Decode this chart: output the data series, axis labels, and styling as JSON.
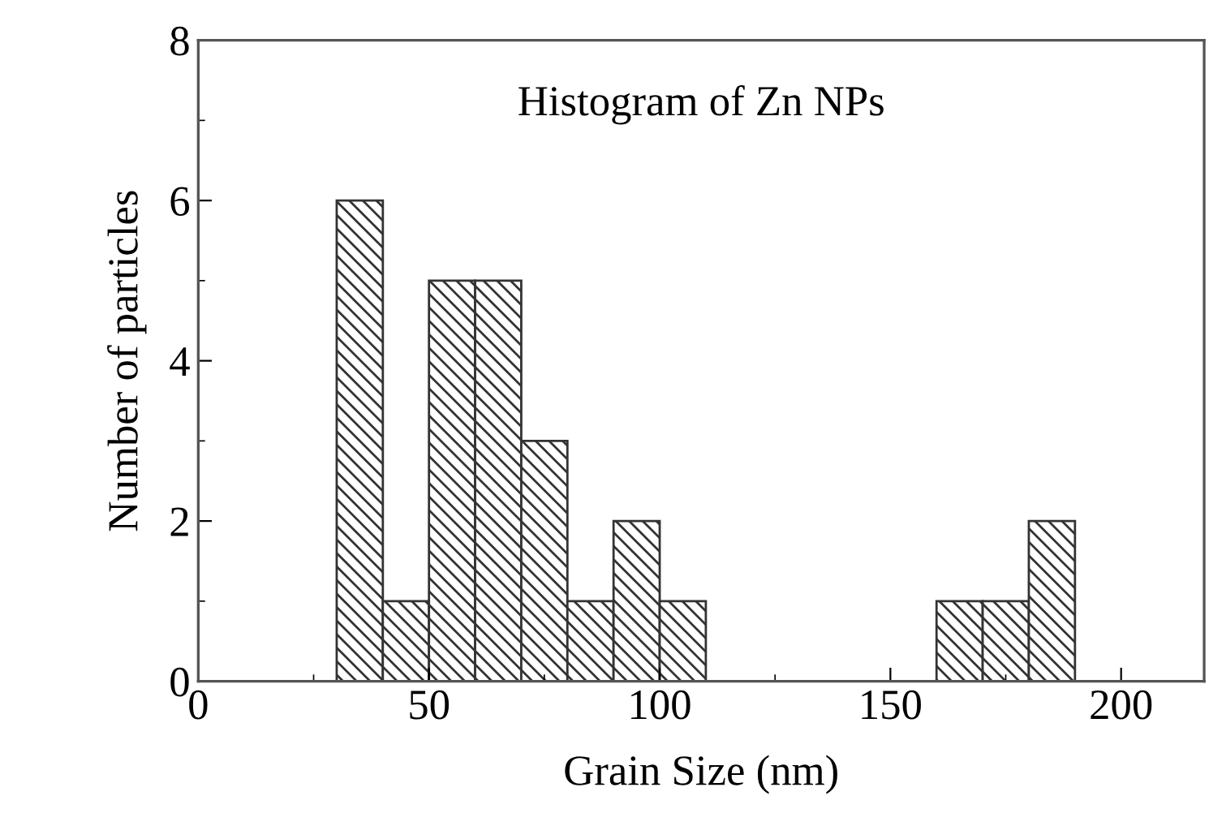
{
  "chart_data": {
    "type": "histogram",
    "xlabel": "Grain Size (nm)",
    "ylabel": "Number of particles",
    "annotations": [
      "Histogram of Zn NPs"
    ],
    "bins": [
      30,
      40,
      50,
      60,
      70,
      80,
      90,
      100,
      110,
      160,
      170,
      180,
      190
    ],
    "values": [
      6,
      1,
      5,
      5,
      3,
      1,
      2,
      1,
      null,
      1,
      1,
      2
    ],
    "color": "#333333",
    "xlim": [
      0,
      218
    ],
    "xticks": [
      0,
      50,
      100,
      150,
      200
    ],
    "ylim": [
      0,
      8
    ],
    "yticks": [
      0,
      2,
      4,
      6,
      8
    ],
    "grid": false,
    "legend": false
  }
}
